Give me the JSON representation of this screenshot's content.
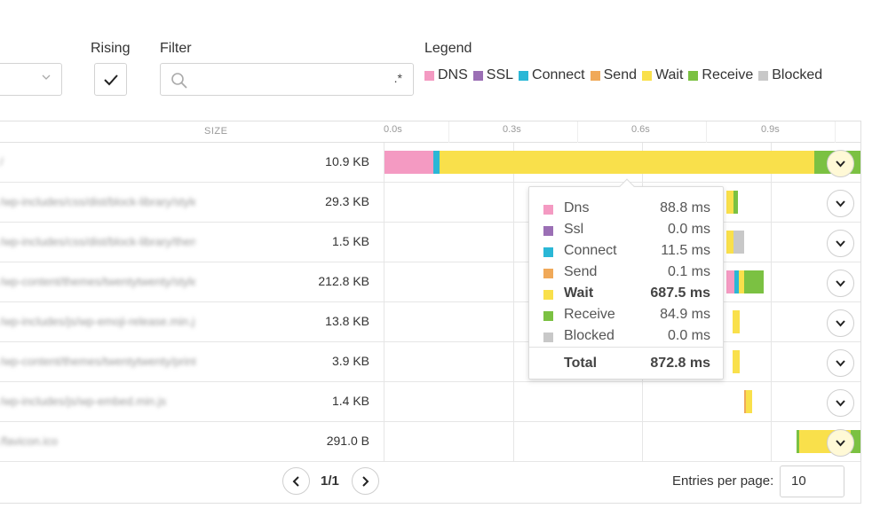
{
  "controls": {
    "rising_label": "Rising",
    "filter_label": "Filter",
    "filter_value": "",
    "regex_label": ".*",
    "legend_label": "Legend"
  },
  "legend": [
    {
      "label": "DNS",
      "color": "#f49ac2"
    },
    {
      "label": "SSL",
      "color": "#9b6fb5"
    },
    {
      "label": "Connect",
      "color": "#2ab7d6"
    },
    {
      "label": "Send",
      "color": "#f0a959"
    },
    {
      "label": "Wait",
      "color": "#f9e04b"
    },
    {
      "label": "Receive",
      "color": "#7bc142"
    },
    {
      "label": "Blocked",
      "color": "#c8c8c8"
    }
  ],
  "table": {
    "size_header": "SIZE",
    "ticks": [
      "0.0s",
      "0.3s",
      "0.6s",
      "0.9s"
    ],
    "rows": [
      {
        "url": "/",
        "size": "10.9 KB"
      },
      {
        "url": "/wp-includes/css/dist/block-library/style.min.css",
        "size": "29.3 KB"
      },
      {
        "url": "/wp-includes/css/dist/block-library/theme.min.css",
        "size": "1.5 KB"
      },
      {
        "url": "/wp-content/themes/twentytwenty/style.css",
        "size": "212.8 KB"
      },
      {
        "url": "/wp-includes/js/wp-emoji-release.min.js",
        "size": "13.8 KB"
      },
      {
        "url": "/wp-content/themes/twentytwenty/print.css",
        "size": "3.9 KB"
      },
      {
        "url": "/wp-includes/js/wp-embed.min.js",
        "size": "1.4 KB"
      },
      {
        "url": "/favicon.ico",
        "size": "291.0 B"
      }
    ]
  },
  "tooltip": {
    "rows": [
      {
        "name": "Dns",
        "value": "88.8 ms",
        "color": "#f49ac2"
      },
      {
        "name": "Ssl",
        "value": "0.0 ms",
        "color": "#9b6fb5"
      },
      {
        "name": "Connect",
        "value": "11.5 ms",
        "color": "#2ab7d6"
      },
      {
        "name": "Send",
        "value": "0.1 ms",
        "color": "#f0a959"
      },
      {
        "name": "Wait",
        "value": "687.5 ms",
        "color": "#f9e04b"
      },
      {
        "name": "Receive",
        "value": "84.9 ms",
        "color": "#7bc142"
      },
      {
        "name": "Blocked",
        "value": "0.0 ms",
        "color": "#c8c8c8"
      }
    ],
    "total_label": "Total",
    "total_value": "872.8 ms"
  },
  "footer": {
    "page": "1/1",
    "entries_label": "Entries per page:",
    "entries_value": "10"
  }
}
